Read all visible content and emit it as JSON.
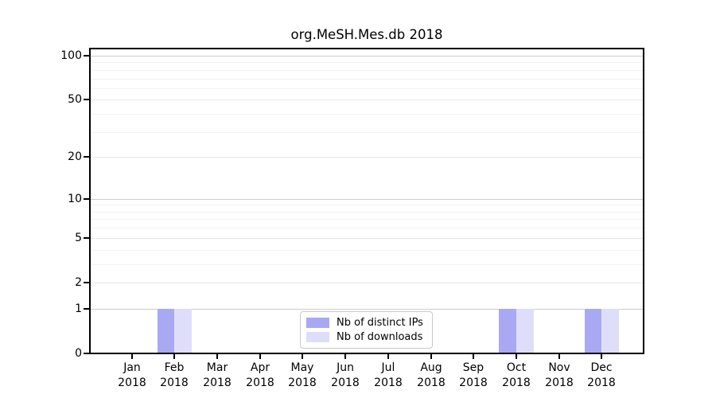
{
  "colors": {
    "background": "#ffffff",
    "spine": "#000000",
    "text": "#000000",
    "legend_border": "#c8c8c8",
    "legend_background": "#ffffff",
    "grid_major": "#cccccc",
    "grid_mid": "#e7e7e7",
    "grid_minor": "#f3f3f3"
  },
  "chart_data": {
    "type": "bar",
    "title": "org.MeSH.Mes.db 2018",
    "xlabel": "",
    "ylabel": "",
    "x": {
      "categories": [
        "Jan",
        "Feb",
        "Mar",
        "Apr",
        "May",
        "Jun",
        "Jul",
        "Aug",
        "Sep",
        "Oct",
        "Nov",
        "Dec"
      ],
      "year_label": "2018"
    },
    "yscale": "log1p",
    "ylim": [
      0,
      110
    ],
    "yticks": [
      {
        "value": 0,
        "label": "0"
      },
      {
        "value": 1,
        "label": "1"
      },
      {
        "value": 2,
        "label": "2"
      },
      {
        "value": 5,
        "label": "5"
      },
      {
        "value": 10,
        "label": "10"
      },
      {
        "value": 20,
        "label": "20"
      },
      {
        "value": 50,
        "label": "50"
      },
      {
        "value": 100,
        "label": "100"
      }
    ],
    "grid": {
      "major_values": [
        1,
        10,
        100
      ],
      "mid_values": [
        2,
        5,
        20,
        50
      ],
      "minor_values": [
        3,
        4,
        6,
        7,
        8,
        9,
        30,
        40,
        60,
        70,
        80,
        90
      ]
    },
    "series": [
      {
        "name": "Nb of distinct IPs",
        "key": "distinct-ips",
        "color": "#a9a9f3",
        "values": [
          0,
          1,
          0,
          0,
          0,
          0,
          0,
          0,
          0,
          1,
          0,
          1
        ]
      },
      {
        "name": "Nb of downloads",
        "key": "downloads",
        "color": "#dedefb",
        "values": [
          0,
          1,
          0,
          0,
          0,
          0,
          0,
          0,
          0,
          1,
          0,
          1
        ]
      }
    ],
    "legend_position": "lower center"
  }
}
